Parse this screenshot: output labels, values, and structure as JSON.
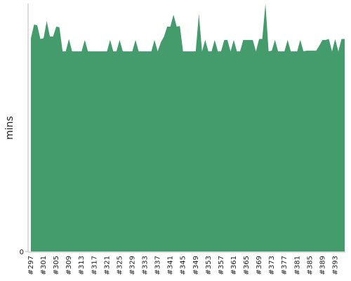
{
  "chart_data": {
    "type": "area",
    "y_label": "mins",
    "color": "#449c6d",
    "ylim": [
      0,
      100
    ],
    "yticks": [
      0
    ],
    "categories": [
      "#297",
      null,
      null,
      null,
      "#301",
      null,
      null,
      null,
      "#305",
      null,
      null,
      null,
      "#309",
      null,
      null,
      null,
      "#313",
      null,
      null,
      null,
      "#317",
      null,
      null,
      null,
      "#321",
      null,
      null,
      null,
      "#325",
      null,
      null,
      null,
      "#329",
      null,
      null,
      null,
      "#333",
      null,
      null,
      null,
      "#337",
      null,
      null,
      null,
      "#341",
      null,
      null,
      null,
      "#345",
      null,
      null,
      null,
      "#349",
      null,
      null,
      null,
      "#353",
      null,
      null,
      null,
      "#357",
      null,
      null,
      null,
      "#361",
      null,
      null,
      null,
      "#365",
      null,
      null,
      null,
      "#369",
      null,
      null,
      null,
      "#373",
      null,
      null,
      null,
      "#377",
      null,
      null,
      null,
      "#381",
      null,
      null,
      null,
      "#385",
      null,
      null,
      null,
      "#389",
      null,
      null,
      null,
      "#393",
      null,
      null,
      null
    ],
    "values": [
      86.0,
      91.5,
      91.2,
      85.7,
      86.0,
      92.9,
      86.7,
      86.7,
      90.7,
      90.4,
      80.7,
      80.7,
      85.7,
      80.7,
      80.7,
      80.7,
      80.7,
      85.3,
      80.7,
      80.7,
      80.7,
      80.7,
      80.7,
      80.7,
      80.7,
      85.3,
      80.7,
      80.7,
      85.3,
      80.7,
      80.7,
      80.7,
      80.7,
      85.3,
      80.7,
      80.7,
      80.7,
      80.7,
      80.7,
      85.3,
      80.7,
      84.4,
      86.7,
      90.7,
      90.7,
      95.5,
      90.7,
      90.9,
      80.7,
      80.7,
      80.7,
      80.7,
      80.7,
      95.8,
      80.7,
      85.3,
      80.7,
      80.7,
      85.3,
      80.7,
      80.7,
      85.3,
      85.3,
      80.7,
      85.3,
      80.7,
      80.7,
      85.3,
      85.3,
      85.3,
      85.3,
      80.7,
      85.7,
      85.7,
      100,
      80.7,
      81.0,
      85.3,
      80.7,
      80.7,
      80.7,
      85.3,
      80.7,
      80.7,
      80.7,
      85.3,
      80.7,
      81.0,
      81.0,
      81.0,
      81.0,
      83.0,
      85.3,
      85.3,
      85.7,
      80.7,
      85.7,
      80.7,
      85.7,
      85.7
    ]
  }
}
